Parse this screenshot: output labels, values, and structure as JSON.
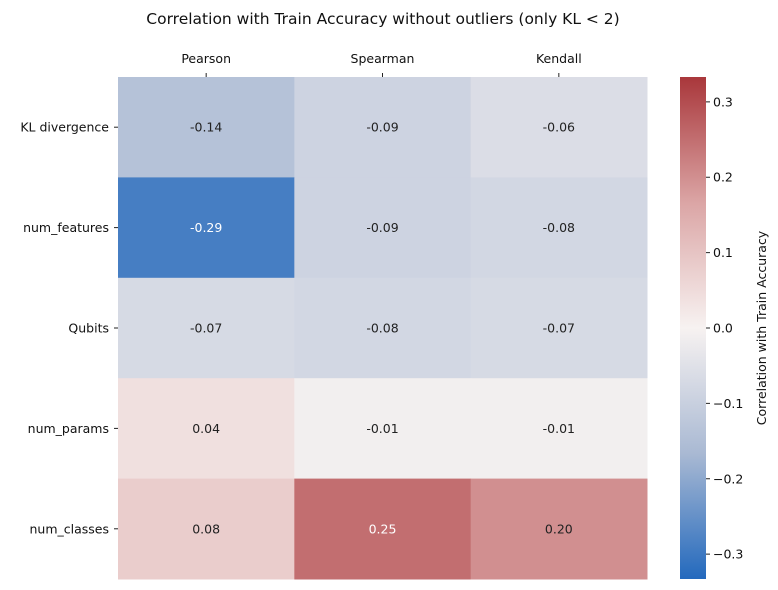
{
  "chart_data": {
    "type": "heatmap",
    "title": "Correlation with Train Accuracy without outliers (only KL < 2)",
    "columns": [
      "Pearson",
      "Spearman",
      "Kendall"
    ],
    "rows": [
      "KL divergence",
      "num_features",
      "Qubits",
      "num_params",
      "num_classes"
    ],
    "values": [
      [
        -0.14,
        -0.09,
        -0.06
      ],
      [
        -0.29,
        -0.09,
        -0.08
      ],
      [
        -0.07,
        -0.08,
        -0.07
      ],
      [
        0.04,
        -0.01,
        -0.01
      ],
      [
        0.08,
        0.25,
        0.2
      ]
    ],
    "cell_labels": [
      [
        "-0.14",
        "-0.09",
        "-0.06"
      ],
      [
        "-0.29",
        "-0.09",
        "-0.08"
      ],
      [
        "-0.07",
        "-0.08",
        "-0.07"
      ],
      [
        "0.04",
        "-0.01",
        "-0.01"
      ],
      [
        "0.08",
        "0.25",
        "0.20"
      ]
    ],
    "colormap": "vlag",
    "vmin": -0.333,
    "vmax": 0.333,
    "colorbar": {
      "label": "Correlation with Train Accuracy",
      "ticks": [
        -0.3,
        -0.2,
        -0.1,
        0.0,
        0.1,
        0.2,
        0.3
      ],
      "tick_labels": [
        "−0.3",
        "−0.2",
        "−0.1",
        "0.0",
        "0.1",
        "0.2",
        "0.3"
      ]
    },
    "x_ticks_position": "top"
  }
}
